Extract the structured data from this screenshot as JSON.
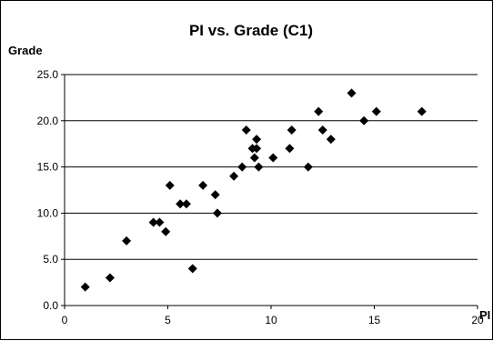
{
  "chart_data": {
    "type": "scatter",
    "title": "PI vs. Grade (C1)",
    "xlabel": "PI",
    "ylabel": "Grade",
    "xlim": [
      0,
      20
    ],
    "ylim": [
      0,
      25
    ],
    "x_ticks": [
      "0",
      "5",
      "10",
      "15",
      "20"
    ],
    "y_ticks": [
      "0.0",
      "5.0",
      "10.0",
      "15.0",
      "20.0",
      "25.0"
    ],
    "grid": "horizontal",
    "marker": "diamond",
    "marker_color": "#000000",
    "points": [
      {
        "x": 1.0,
        "y": 2
      },
      {
        "x": 2.2,
        "y": 3
      },
      {
        "x": 3.0,
        "y": 7
      },
      {
        "x": 4.3,
        "y": 9
      },
      {
        "x": 4.6,
        "y": 9
      },
      {
        "x": 4.9,
        "y": 8
      },
      {
        "x": 5.1,
        "y": 13
      },
      {
        "x": 5.6,
        "y": 11
      },
      {
        "x": 5.9,
        "y": 11
      },
      {
        "x": 6.2,
        "y": 4
      },
      {
        "x": 6.7,
        "y": 13
      },
      {
        "x": 7.3,
        "y": 12
      },
      {
        "x": 7.4,
        "y": 10
      },
      {
        "x": 8.2,
        "y": 14
      },
      {
        "x": 8.6,
        "y": 15
      },
      {
        "x": 8.8,
        "y": 19
      },
      {
        "x": 9.1,
        "y": 17
      },
      {
        "x": 9.2,
        "y": 16
      },
      {
        "x": 9.3,
        "y": 18
      },
      {
        "x": 9.3,
        "y": 17
      },
      {
        "x": 9.4,
        "y": 15
      },
      {
        "x": 10.1,
        "y": 16
      },
      {
        "x": 10.9,
        "y": 17
      },
      {
        "x": 11.0,
        "y": 19
      },
      {
        "x": 11.8,
        "y": 15
      },
      {
        "x": 12.3,
        "y": 21
      },
      {
        "x": 12.5,
        "y": 19
      },
      {
        "x": 12.9,
        "y": 18
      },
      {
        "x": 13.9,
        "y": 23
      },
      {
        "x": 14.5,
        "y": 20
      },
      {
        "x": 15.1,
        "y": 21
      },
      {
        "x": 17.3,
        "y": 21
      }
    ]
  }
}
